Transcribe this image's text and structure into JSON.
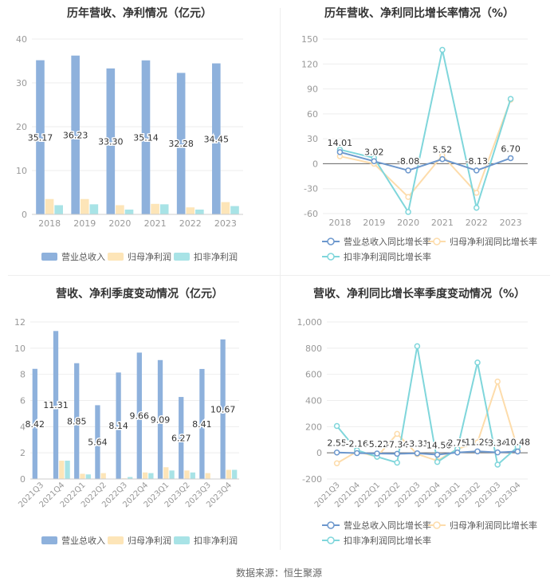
{
  "source": "数据来源：恒生聚源",
  "colors": {
    "revenue": "#8eb1dc",
    "net_profit": "#fde5b8",
    "deducted": "#a8e3e6",
    "revenue_line": "#6c97cd",
    "net_line": "#fddcab",
    "deducted_line": "#7fd6db",
    "grid": "#eeeeee",
    "axis": "#999999"
  },
  "chart_data": [
    {
      "id": "annual_amounts",
      "type": "bar",
      "title": "历年营收、净利情况（亿元）",
      "categories": [
        "2018",
        "2019",
        "2020",
        "2021",
        "2022",
        "2023"
      ],
      "series": [
        {
          "name": "营业总收入",
          "values": [
            35.17,
            36.23,
            33.3,
            35.14,
            32.28,
            34.45
          ],
          "labels": [
            "35.17",
            "36.23",
            "33.30",
            "35.14",
            "32.28",
            "34.45"
          ]
        },
        {
          "name": "归母净利润",
          "values": [
            3.5,
            3.5,
            2.1,
            2.4,
            1.6,
            2.8
          ]
        },
        {
          "name": "扣非净利润",
          "values": [
            2.1,
            2.3,
            1.1,
            2.3,
            1.1,
            1.9
          ]
        }
      ],
      "ylim": [
        0,
        40
      ],
      "yticks": [
        "0",
        "10",
        "20",
        "30",
        "40"
      ],
      "grid": true,
      "legend": "bottom"
    },
    {
      "id": "annual_growth",
      "type": "line",
      "title": "历年营收、净利同比增长率情况（%）",
      "categories": [
        "2018",
        "2019",
        "2020",
        "2021",
        "2022",
        "2023"
      ],
      "series": [
        {
          "name": "营业总收入同比增长率",
          "values": [
            14.01,
            3.02,
            -8.08,
            5.52,
            -8.13,
            6.7
          ],
          "labels": [
            "14.01",
            "3.02",
            "-8.08",
            "5.52",
            "-8.13",
            "6.70"
          ]
        },
        {
          "name": "归母净利润同比增长率",
          "values": [
            9,
            0,
            -40,
            10,
            -35,
            77
          ]
        },
        {
          "name": "扣非净利润同比增长率",
          "values": [
            17,
            7,
            -58,
            137,
            -53,
            78
          ]
        }
      ],
      "ylim": [
        -60,
        150
      ],
      "yticks": [
        "-60",
        "-30",
        "0",
        "30",
        "60",
        "90",
        "120",
        "150"
      ],
      "grid": true,
      "legend": "bottom"
    },
    {
      "id": "quarterly_amounts",
      "type": "bar",
      "title": "营收、净利季度变动情况（亿元）",
      "categories": [
        "2021Q3",
        "2021Q4",
        "2022Q1",
        "2022Q2",
        "2022Q3",
        "2022Q4",
        "2023Q1",
        "2023Q2",
        "2023Q3",
        "2023Q4"
      ],
      "series": [
        {
          "name": "营业总收入",
          "values": [
            8.42,
            11.31,
            8.85,
            5.64,
            8.14,
            9.66,
            9.09,
            6.27,
            8.41,
            10.67
          ],
          "labels": [
            "8.42",
            "11.31",
            "8.85",
            "5.64",
            "8.14",
            "9.66",
            "9.09",
            "6.27",
            "8.41",
            "10.67"
          ]
        },
        {
          "name": "归母净利润",
          "values": [
            0.0,
            1.4,
            0.4,
            0.45,
            0.05,
            0.5,
            0.9,
            0.65,
            0.45,
            0.7
          ]
        },
        {
          "name": "扣非净利润",
          "values": [
            0.0,
            1.4,
            0.35,
            0.0,
            0.15,
            0.45,
            0.65,
            0.5,
            0.0,
            0.7
          ]
        }
      ],
      "ylim": [
        0,
        12
      ],
      "yticks": [
        "0",
        "2",
        "4",
        "6",
        "8",
        "10",
        "12"
      ],
      "grid": true,
      "legend": "bottom"
    },
    {
      "id": "quarterly_growth",
      "type": "line",
      "title": "营收、净利同比增长率季度变动情况（%）",
      "categories": [
        "2021Q3",
        "2021Q4",
        "2022Q1",
        "2022Q2",
        "2022Q3",
        "2022Q4",
        "2023Q1",
        "2023Q2",
        "2023Q3",
        "2023Q4"
      ],
      "series": [
        {
          "name": "营业总收入同比增长率",
          "values": [
            2.55,
            -2.16,
            -5.22,
            -7.34,
            -3.31,
            -14.56,
            2.75,
            11.29,
            3.34,
            10.48
          ],
          "labels": [
            "2.55",
            "-2.16",
            "-5.22",
            "-7.34",
            "-3.31",
            "-14.56",
            "2.75",
            "11.29",
            "3.34",
            "10.48"
          ]
        },
        {
          "name": "归母净利润同比增长率",
          "values": [
            -80,
            10,
            -30,
            145,
            -10,
            -60,
            30,
            80,
            545,
            30
          ]
        },
        {
          "name": "扣非净利润同比增长率",
          "values": [
            205,
            20,
            -30,
            -75,
            815,
            -70,
            30,
            690,
            -90,
            45
          ]
        }
      ],
      "ylim": [
        -200,
        1000
      ],
      "yticks": [
        "-200",
        "0",
        "200",
        "400",
        "600",
        "800",
        "1,000"
      ],
      "grid": true,
      "legend": "bottom"
    }
  ]
}
